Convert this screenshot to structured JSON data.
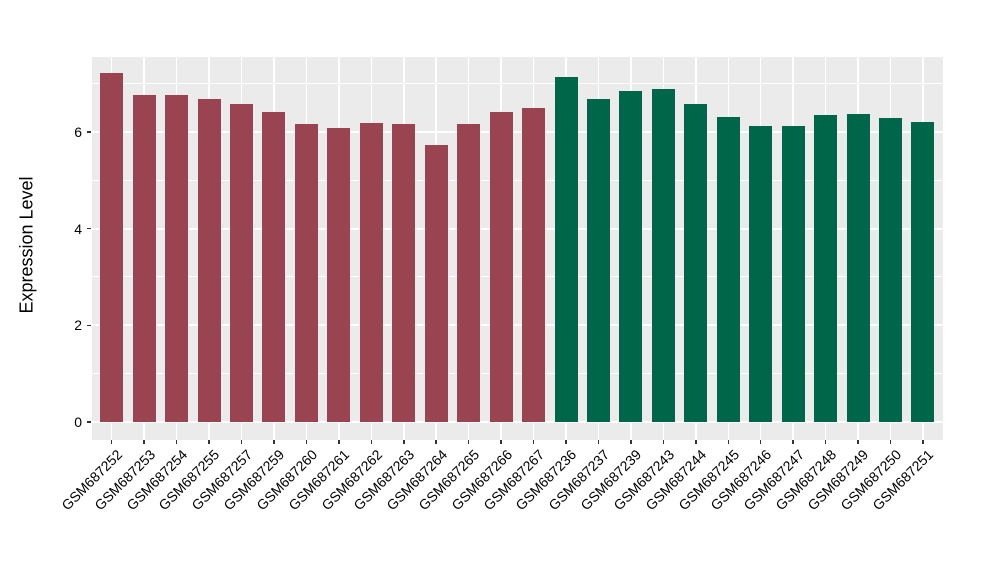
{
  "chart_data": {
    "type": "bar",
    "title": "",
    "xlabel": "",
    "ylabel": "Expression Level",
    "categories": [
      "GSM687252",
      "GSM687253",
      "GSM687254",
      "GSM687255",
      "GSM687257",
      "GSM687259",
      "GSM687260",
      "GSM687261",
      "GSM687262",
      "GSM687263",
      "GSM687264",
      "GSM687265",
      "GSM687266",
      "GSM687267",
      "GSM687236",
      "GSM687237",
      "GSM687239",
      "GSM687243",
      "GSM687244",
      "GSM687245",
      "GSM687246",
      "GSM687247",
      "GSM687248",
      "GSM687249",
      "GSM687250",
      "GSM687251"
    ],
    "values": [
      7.21,
      6.77,
      6.77,
      6.68,
      6.58,
      6.42,
      6.16,
      6.08,
      6.18,
      6.17,
      5.73,
      6.16,
      6.41,
      6.49,
      7.14,
      6.68,
      6.85,
      6.89,
      6.57,
      6.3,
      6.13,
      6.12,
      6.35,
      6.37,
      6.28,
      6.21
    ],
    "groups": [
      "red",
      "red",
      "red",
      "red",
      "red",
      "red",
      "red",
      "red",
      "red",
      "red",
      "red",
      "red",
      "red",
      "red",
      "green",
      "green",
      "green",
      "green",
      "green",
      "green",
      "green",
      "green",
      "green",
      "green",
      "green",
      "green"
    ],
    "group_colors": {
      "red": "#9A4451",
      "green": "#006649"
    },
    "yticks": [
      0,
      2,
      4,
      6
    ],
    "minor_yticks": [
      1,
      3,
      5,
      7
    ],
    "ylim": [
      -0.372,
      7.548
    ],
    "grid": true,
    "legend": false,
    "colors": {
      "panel_background": "#EBEBEB",
      "gridline": "#FFFFFF",
      "tick_mark": "#333333",
      "text": "#000000",
      "figure_background": "#FFFFFF"
    }
  }
}
